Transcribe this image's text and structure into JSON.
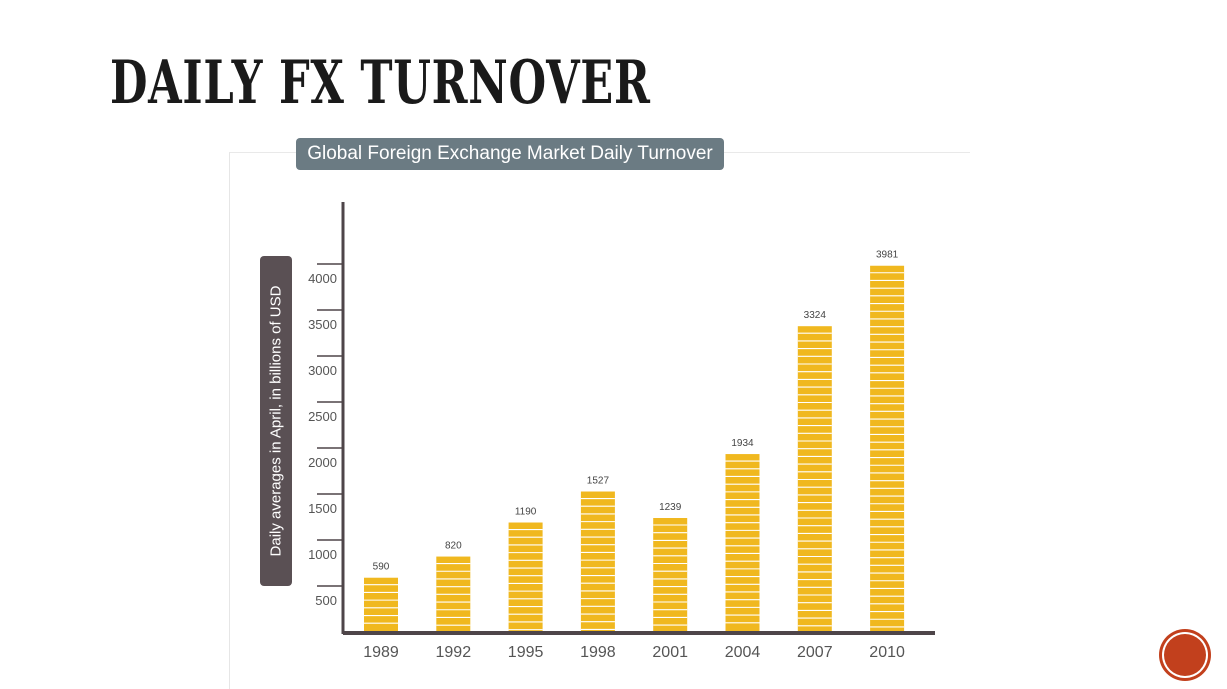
{
  "slide": {
    "title": "DAILY FX TURNOVER"
  },
  "colors": {
    "bar": "#f0b81f",
    "bar_stripe": "#ffffff",
    "axis": "#4e4549",
    "title_bg": "#6b7b83",
    "ylabel_bg": "#5a5054",
    "badge": "#c2401d"
  },
  "chart_data": {
    "type": "bar",
    "title": "Global Foreign Exchange Market Daily Turnover",
    "xlabel": "",
    "ylabel": "Daily averages in April, in billions of USD",
    "categories": [
      "1989",
      "1992",
      "1995",
      "1998",
      "2001",
      "2004",
      "2007",
      "2010"
    ],
    "values": [
      590,
      820,
      1190,
      1527,
      1239,
      1934,
      3324,
      3981
    ],
    "data_labels": [
      "590",
      "820",
      "1190",
      "1527",
      "1239",
      "1934",
      "3324",
      "3981"
    ],
    "yticks": [
      500,
      1000,
      1500,
      2000,
      2500,
      3000,
      3500,
      4000
    ],
    "ytick_labels": [
      "500",
      "1000",
      "1500",
      "2000",
      "2500",
      "3000",
      "3500",
      "4000"
    ],
    "ylim": [
      0,
      4500
    ],
    "grid": false,
    "legend": "none",
    "style": "stacked coins"
  }
}
